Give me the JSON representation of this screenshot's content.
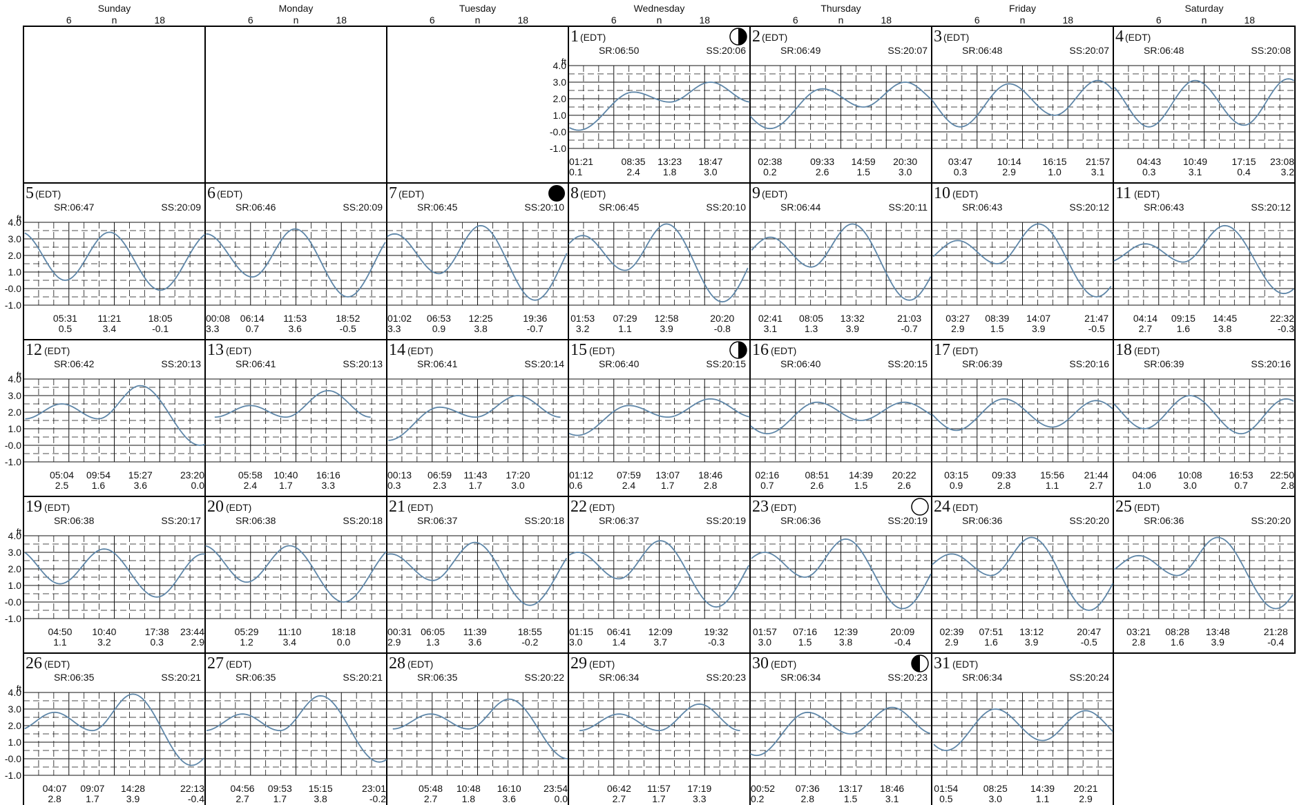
{
  "tz": "(EDT)",
  "unit": "ft",
  "sr_prefix": "SR:",
  "ss_prefix": "SS:",
  "hour_ticks": [
    "6",
    "n",
    "18"
  ],
  "y_axis_labels": [
    "4.0",
    "3.0",
    "2.0",
    "1.0",
    "-0.0",
    "-1.0"
  ],
  "weekdays": [
    "Sunday",
    "Monday",
    "Tuesday",
    "Wednesday",
    "Thursday",
    "Friday",
    "Saturday"
  ],
  "colors": {
    "curve": "#5e86a8",
    "grid": "#111111",
    "border": "#000000"
  },
  "chart_data": {
    "type": "line",
    "ylim": [
      -1.0,
      4.0
    ],
    "x_unit": "hour of day",
    "days": [
      {
        "day": 1,
        "col": 3,
        "row": 0,
        "sunrise": "06:50",
        "sunset": "20:06",
        "moon": "first-quarter",
        "tides": [
          {
            "t": "01:21",
            "h": 0.1
          },
          {
            "t": "08:35",
            "h": 2.4
          },
          {
            "t": "13:23",
            "h": 1.8
          },
          {
            "t": "18:47",
            "h": 3.0
          }
        ]
      },
      {
        "day": 2,
        "col": 4,
        "row": 0,
        "sunrise": "06:49",
        "sunset": "20:07",
        "tides": [
          {
            "t": "02:38",
            "h": 0.2
          },
          {
            "t": "09:33",
            "h": 2.6
          },
          {
            "t": "14:59",
            "h": 1.5
          },
          {
            "t": "20:30",
            "h": 3.0
          }
        ]
      },
      {
        "day": 3,
        "col": 5,
        "row": 0,
        "sunrise": "06:48",
        "sunset": "20:07",
        "tides": [
          {
            "t": "03:47",
            "h": 0.3
          },
          {
            "t": "10:14",
            "h": 2.9
          },
          {
            "t": "16:15",
            "h": 1.0
          },
          {
            "t": "21:57",
            "h": 3.1
          }
        ]
      },
      {
        "day": 4,
        "col": 6,
        "row": 0,
        "sunrise": "06:48",
        "sunset": "20:08",
        "tides": [
          {
            "t": "04:43",
            "h": 0.3
          },
          {
            "t": "10:49",
            "h": 3.1
          },
          {
            "t": "17:15",
            "h": 0.4
          },
          {
            "t": "23:08",
            "h": 3.2
          }
        ]
      },
      {
        "day": 5,
        "col": 0,
        "row": 1,
        "sunrise": "06:47",
        "sunset": "20:09",
        "tides": [
          {
            "t": "05:31",
            "h": 0.5
          },
          {
            "t": "11:21",
            "h": 3.4
          },
          {
            "t": "18:05",
            "h": -0.1
          }
        ]
      },
      {
        "day": 6,
        "col": 1,
        "row": 1,
        "sunrise": "06:46",
        "sunset": "20:09",
        "tides": [
          {
            "t": "00:08",
            "h": 3.3
          },
          {
            "t": "06:14",
            "h": 0.7
          },
          {
            "t": "11:53",
            "h": 3.6
          },
          {
            "t": "18:52",
            "h": -0.5
          }
        ]
      },
      {
        "day": 7,
        "col": 2,
        "row": 1,
        "sunrise": "06:45",
        "sunset": "20:10",
        "moon": "new",
        "tides": [
          {
            "t": "01:02",
            "h": 3.3
          },
          {
            "t": "06:53",
            "h": 0.9
          },
          {
            "t": "12:25",
            "h": 3.8
          },
          {
            "t": "19:36",
            "h": -0.7
          }
        ]
      },
      {
        "day": 8,
        "col": 3,
        "row": 1,
        "sunrise": "06:45",
        "sunset": "20:10",
        "tides": [
          {
            "t": "01:53",
            "h": 3.2
          },
          {
            "t": "07:29",
            "h": 1.1
          },
          {
            "t": "12:58",
            "h": 3.9
          },
          {
            "t": "20:20",
            "h": -0.8
          }
        ]
      },
      {
        "day": 9,
        "col": 4,
        "row": 1,
        "sunrise": "06:44",
        "sunset": "20:11",
        "tides": [
          {
            "t": "02:41",
            "h": 3.1
          },
          {
            "t": "08:05",
            "h": 1.3
          },
          {
            "t": "13:32",
            "h": 3.9
          },
          {
            "t": "21:03",
            "h": -0.7
          }
        ]
      },
      {
        "day": 10,
        "col": 5,
        "row": 1,
        "sunrise": "06:43",
        "sunset": "20:12",
        "tides": [
          {
            "t": "03:27",
            "h": 2.9
          },
          {
            "t": "08:39",
            "h": 1.5
          },
          {
            "t": "14:07",
            "h": 3.9
          },
          {
            "t": "21:47",
            "h": -0.5
          }
        ]
      },
      {
        "day": 11,
        "col": 6,
        "row": 1,
        "sunrise": "06:43",
        "sunset": "20:12",
        "tides": [
          {
            "t": "04:14",
            "h": 2.7
          },
          {
            "t": "09:15",
            "h": 1.6
          },
          {
            "t": "14:45",
            "h": 3.8
          },
          {
            "t": "22:32",
            "h": -0.3
          }
        ]
      },
      {
        "day": 12,
        "col": 0,
        "row": 2,
        "sunrise": "06:42",
        "sunset": "20:13",
        "tides": [
          {
            "t": "05:04",
            "h": 2.5
          },
          {
            "t": "09:54",
            "h": 1.6
          },
          {
            "t": "15:27",
            "h": 3.6
          },
          {
            "t": "23:20",
            "h": 0.0
          }
        ]
      },
      {
        "day": 13,
        "col": 1,
        "row": 2,
        "sunrise": "06:41",
        "sunset": "20:13",
        "tides": [
          {
            "t": "05:58",
            "h": 2.4
          },
          {
            "t": "10:40",
            "h": 1.7
          },
          {
            "t": "16:16",
            "h": 3.3
          }
        ]
      },
      {
        "day": 14,
        "col": 2,
        "row": 2,
        "sunrise": "06:41",
        "sunset": "20:14",
        "tides": [
          {
            "t": "00:13",
            "h": 0.3
          },
          {
            "t": "06:59",
            "h": 2.3
          },
          {
            "t": "11:43",
            "h": 1.7
          },
          {
            "t": "17:20",
            "h": 3.0
          }
        ]
      },
      {
        "day": 15,
        "col": 3,
        "row": 2,
        "sunrise": "06:40",
        "sunset": "20:15",
        "moon": "first-quarter",
        "tides": [
          {
            "t": "01:12",
            "h": 0.6
          },
          {
            "t": "07:59",
            "h": 2.4
          },
          {
            "t": "13:07",
            "h": 1.7
          },
          {
            "t": "18:46",
            "h": 2.8
          }
        ]
      },
      {
        "day": 16,
        "col": 4,
        "row": 2,
        "sunrise": "06:40",
        "sunset": "20:15",
        "tides": [
          {
            "t": "02:16",
            "h": 0.7
          },
          {
            "t": "08:51",
            "h": 2.6
          },
          {
            "t": "14:39",
            "h": 1.5
          },
          {
            "t": "20:22",
            "h": 2.6
          }
        ]
      },
      {
        "day": 17,
        "col": 5,
        "row": 2,
        "sunrise": "06:39",
        "sunset": "20:16",
        "tides": [
          {
            "t": "03:15",
            "h": 0.9
          },
          {
            "t": "09:33",
            "h": 2.8
          },
          {
            "t": "15:56",
            "h": 1.1
          },
          {
            "t": "21:44",
            "h": 2.7
          }
        ]
      },
      {
        "day": 18,
        "col": 6,
        "row": 2,
        "sunrise": "06:39",
        "sunset": "20:16",
        "tides": [
          {
            "t": "04:06",
            "h": 1.0
          },
          {
            "t": "10:08",
            "h": 3.0
          },
          {
            "t": "16:53",
            "h": 0.7
          },
          {
            "t": "22:50",
            "h": 2.8
          }
        ]
      },
      {
        "day": 19,
        "col": 0,
        "row": 3,
        "sunrise": "06:38",
        "sunset": "20:17",
        "tides": [
          {
            "t": "04:50",
            "h": 1.1
          },
          {
            "t": "10:40",
            "h": 3.2
          },
          {
            "t": "17:38",
            "h": 0.3
          },
          {
            "t": "23:44",
            "h": 2.9
          }
        ]
      },
      {
        "day": 20,
        "col": 1,
        "row": 3,
        "sunrise": "06:38",
        "sunset": "20:18",
        "tides": [
          {
            "t": "05:29",
            "h": 1.2
          },
          {
            "t": "11:10",
            "h": 3.4
          },
          {
            "t": "18:18",
            "h": 0.0
          }
        ]
      },
      {
        "day": 21,
        "col": 2,
        "row": 3,
        "sunrise": "06:37",
        "sunset": "20:18",
        "tides": [
          {
            "t": "00:31",
            "h": 2.9
          },
          {
            "t": "06:05",
            "h": 1.3
          },
          {
            "t": "11:39",
            "h": 3.6
          },
          {
            "t": "18:55",
            "h": -0.2
          }
        ]
      },
      {
        "day": 22,
        "col": 3,
        "row": 3,
        "sunrise": "06:37",
        "sunset": "20:19",
        "tides": [
          {
            "t": "01:15",
            "h": 3.0
          },
          {
            "t": "06:41",
            "h": 1.4
          },
          {
            "t": "12:09",
            "h": 3.7
          },
          {
            "t": "19:32",
            "h": -0.3
          }
        ]
      },
      {
        "day": 23,
        "col": 4,
        "row": 3,
        "sunrise": "06:36",
        "sunset": "20:19",
        "moon": "full",
        "tides": [
          {
            "t": "01:57",
            "h": 3.0
          },
          {
            "t": "07:16",
            "h": 1.5
          },
          {
            "t": "12:39",
            "h": 3.8
          },
          {
            "t": "20:09",
            "h": -0.4
          }
        ]
      },
      {
        "day": 24,
        "col": 5,
        "row": 3,
        "sunrise": "06:36",
        "sunset": "20:20",
        "tides": [
          {
            "t": "02:39",
            "h": 2.9
          },
          {
            "t": "07:51",
            "h": 1.6
          },
          {
            "t": "13:12",
            "h": 3.9
          },
          {
            "t": "20:47",
            "h": -0.5
          }
        ]
      },
      {
        "day": 25,
        "col": 6,
        "row": 3,
        "sunrise": "06:36",
        "sunset": "20:20",
        "tides": [
          {
            "t": "03:21",
            "h": 2.8
          },
          {
            "t": "08:28",
            "h": 1.6
          },
          {
            "t": "13:48",
            "h": 3.9
          },
          {
            "t": "21:28",
            "h": -0.4
          }
        ]
      },
      {
        "day": 26,
        "col": 0,
        "row": 4,
        "sunrise": "06:35",
        "sunset": "20:21",
        "tides": [
          {
            "t": "04:07",
            "h": 2.8
          },
          {
            "t": "09:07",
            "h": 1.7
          },
          {
            "t": "14:28",
            "h": 3.9
          },
          {
            "t": "22:13",
            "h": -0.4
          }
        ]
      },
      {
        "day": 27,
        "col": 1,
        "row": 4,
        "sunrise": "06:35",
        "sunset": "20:21",
        "tides": [
          {
            "t": "04:56",
            "h": 2.7
          },
          {
            "t": "09:53",
            "h": 1.7
          },
          {
            "t": "15:15",
            "h": 3.8
          },
          {
            "t": "23:01",
            "h": -0.2
          }
        ]
      },
      {
        "day": 28,
        "col": 2,
        "row": 4,
        "sunrise": "06:35",
        "sunset": "20:22",
        "tides": [
          {
            "t": "05:48",
            "h": 2.7
          },
          {
            "t": "10:48",
            "h": 1.8
          },
          {
            "t": "16:10",
            "h": 3.6
          },
          {
            "t": "23:54",
            "h": 0.0
          }
        ]
      },
      {
        "day": 29,
        "col": 3,
        "row": 4,
        "sunrise": "06:34",
        "sunset": "20:23",
        "tides": [
          {
            "t": "06:42",
            "h": 2.7
          },
          {
            "t": "11:57",
            "h": 1.7
          },
          {
            "t": "17:19",
            "h": 3.3
          }
        ]
      },
      {
        "day": 30,
        "col": 4,
        "row": 4,
        "sunrise": "06:34",
        "sunset": "20:23",
        "moon": "last-quarter",
        "tides": [
          {
            "t": "00:52",
            "h": 0.2
          },
          {
            "t": "07:36",
            "h": 2.8
          },
          {
            "t": "13:17",
            "h": 1.5
          },
          {
            "t": "18:46",
            "h": 3.1
          }
        ]
      },
      {
        "day": 31,
        "col": 5,
        "row": 4,
        "sunrise": "06:34",
        "sunset": "20:24",
        "tides": [
          {
            "t": "01:54",
            "h": 0.5
          },
          {
            "t": "08:25",
            "h": 3.0
          },
          {
            "t": "14:39",
            "h": 1.1
          },
          {
            "t": "20:21",
            "h": 2.9
          }
        ]
      }
    ]
  }
}
